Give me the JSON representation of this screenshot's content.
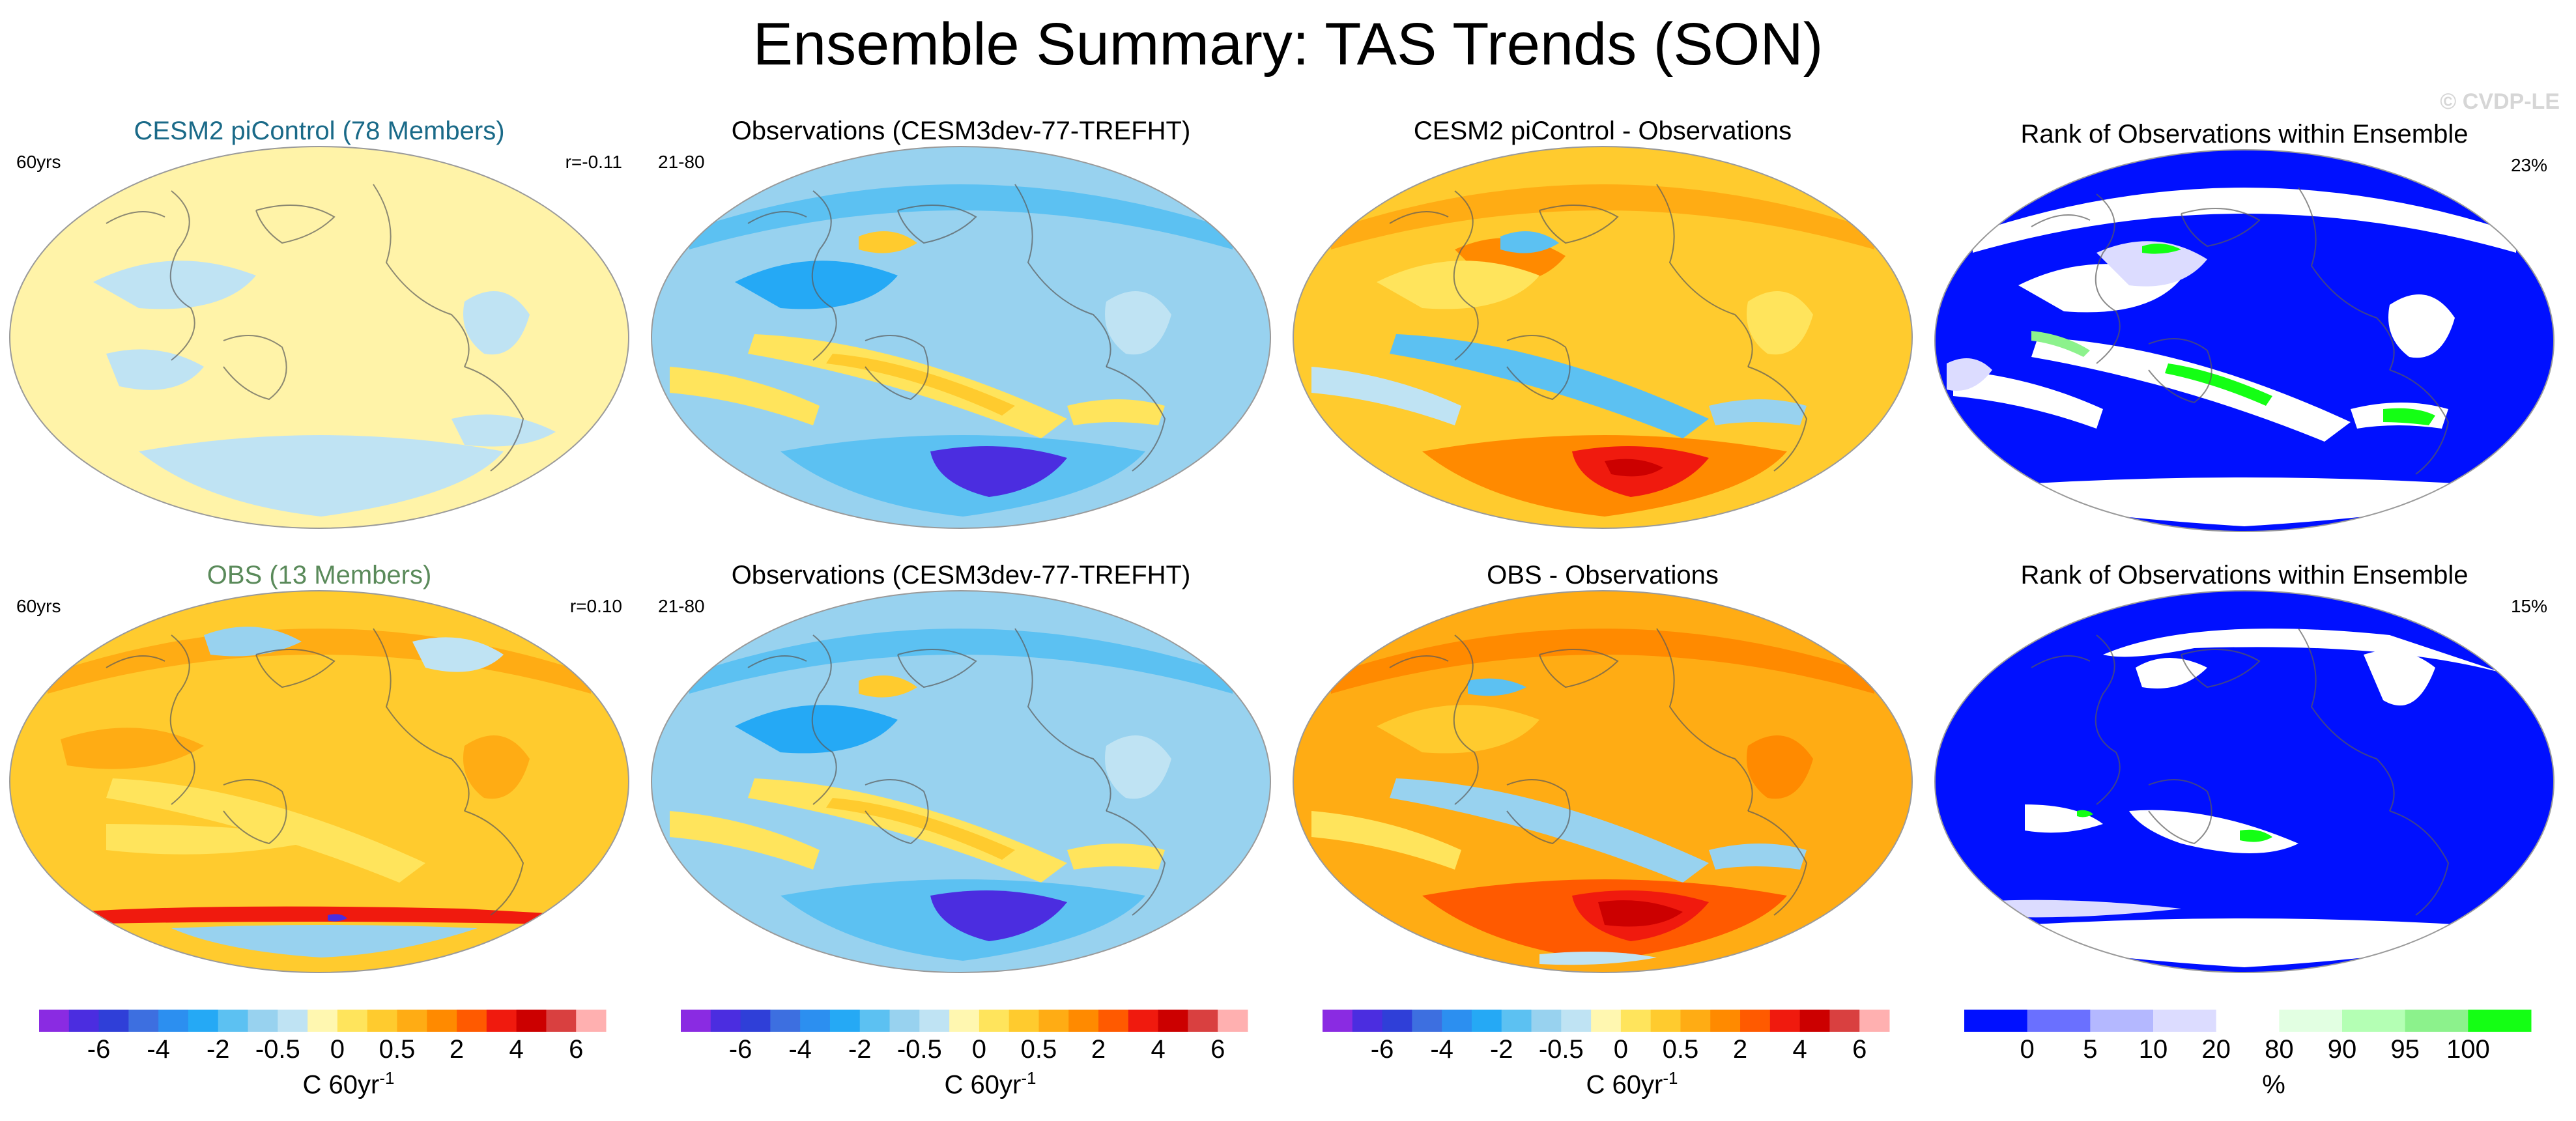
{
  "title": "Ensemble Summary: TAS Trends (SON)",
  "copyright": "© CVDP-LE",
  "chart_data": [
    {
      "type": "map",
      "title": "CESM2 piControl (78 Members)",
      "title_color": "#1a6a88",
      "left_label": "60yrs",
      "right_label": "r=-0.11",
      "style": "model_pi"
    },
    {
      "type": "map",
      "title": "Observations (CESM3dev-77-TREFHT)",
      "title_color": "#000000",
      "left_label": "21-80",
      "right_label": "",
      "style": "obs"
    },
    {
      "type": "map",
      "title": "CESM2 piControl - Observations",
      "title_color": "#000000",
      "left_label": "",
      "right_label": "",
      "style": "diff_pi"
    },
    {
      "type": "map",
      "title": "Rank of Observations within Ensemble",
      "title_color": "#000000",
      "left_label": "",
      "right_label": "23%",
      "style": "rank_pi"
    },
    {
      "type": "map",
      "title": "OBS (13 Members)",
      "title_color": "#5a8a5a",
      "left_label": "60yrs",
      "right_label": "r=0.10",
      "style": "model_obs"
    },
    {
      "type": "map",
      "title": "Observations (CESM3dev-77-TREFHT)",
      "title_color": "#000000",
      "left_label": "21-80",
      "right_label": "",
      "style": "obs"
    },
    {
      "type": "map",
      "title": "OBS - Observations",
      "title_color": "#000000",
      "left_label": "",
      "right_label": "",
      "style": "diff_obs"
    },
    {
      "type": "map",
      "title": "Rank of Observations within Ensemble",
      "title_color": "#000000",
      "left_label": "",
      "right_label": "15%",
      "style": "rank_obs"
    }
  ],
  "colorbars": [
    {
      "unit": "C 60yr",
      "unit_sup": "-1",
      "ticks": [
        "-6",
        "-4",
        "-2",
        "-0.5",
        "0",
        "0.5",
        "2",
        "4",
        "6"
      ],
      "colors": [
        "#8a2be2",
        "#4b2de0",
        "#2f3fd8",
        "#3d6fe0",
        "#2c8ff0",
        "#25a9f5",
        "#5cc1f2",
        "#98d2ef",
        "#bfe3f3",
        "#fff7b0",
        "#ffe45c",
        "#ffcb2e",
        "#ffac14",
        "#ff8a00",
        "#ff5a00",
        "#f01a0e",
        "#cc0000",
        "#d94040",
        "#ffb0b0"
      ]
    },
    {
      "unit": "C 60yr",
      "unit_sup": "-1",
      "ticks": [
        "-6",
        "-4",
        "-2",
        "-0.5",
        "0",
        "0.5",
        "2",
        "4",
        "6"
      ],
      "colors": [
        "#8a2be2",
        "#4b2de0",
        "#2f3fd8",
        "#3d6fe0",
        "#2c8ff0",
        "#25a9f5",
        "#5cc1f2",
        "#98d2ef",
        "#bfe3f3",
        "#fff7b0",
        "#ffe45c",
        "#ffcb2e",
        "#ffac14",
        "#ff8a00",
        "#ff5a00",
        "#f01a0e",
        "#cc0000",
        "#d94040",
        "#ffb0b0"
      ]
    },
    {
      "unit": "C 60yr",
      "unit_sup": "-1",
      "ticks": [
        "-6",
        "-4",
        "-2",
        "-0.5",
        "0",
        "0.5",
        "2",
        "4",
        "6"
      ],
      "colors": [
        "#8a2be2",
        "#4b2de0",
        "#2f3fd8",
        "#3d6fe0",
        "#2c8ff0",
        "#25a9f5",
        "#5cc1f2",
        "#98d2ef",
        "#bfe3f3",
        "#fff7b0",
        "#ffe45c",
        "#ffcb2e",
        "#ffac14",
        "#ff8a00",
        "#ff5a00",
        "#f01a0e",
        "#cc0000",
        "#d94040",
        "#ffb0b0"
      ]
    },
    {
      "unit": "%",
      "unit_sup": "",
      "ticks": [
        "0",
        "5",
        "10",
        "20",
        "80",
        "90",
        "95",
        "100"
      ],
      "colors": [
        "#0010ff",
        "#6a70ff",
        "#b4b8ff",
        "#dcdcff",
        "#ffffff",
        "#e2ffe2",
        "#b4ffb4",
        "#8cf28c",
        "#14ff14"
      ]
    }
  ]
}
